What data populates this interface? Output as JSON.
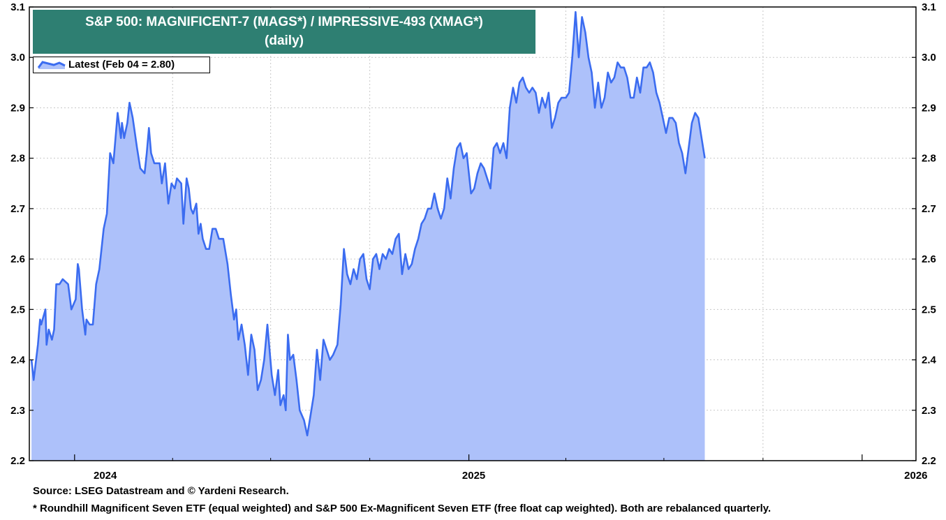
{
  "chart_data": {
    "type": "area",
    "title": "S&P 500: MAGNIFICENT-7 (MAGS*)  /  IMPRESSIVE-493 (XMAG*)",
    "subtitle": "(daily)",
    "legend": {
      "placement": "top-left",
      "entries": [
        "Latest (Feb 04 = 2.80)"
      ]
    },
    "series": [
      {
        "name": "Latest (Feb 04 = 2.80)",
        "line_color": "#3b6cf0",
        "fill_color": "#adc1fa",
        "points": [
          [
            "2023-11-22",
            2.4
          ],
          [
            "2023-11-24",
            2.36
          ],
          [
            "2023-11-28",
            2.43
          ],
          [
            "2023-11-30",
            2.48
          ],
          [
            "2023-12-01",
            2.47
          ],
          [
            "2023-12-05",
            2.5
          ],
          [
            "2023-12-06",
            2.43
          ],
          [
            "2023-12-08",
            2.46
          ],
          [
            "2023-12-11",
            2.44
          ],
          [
            "2023-12-13",
            2.46
          ],
          [
            "2023-12-15",
            2.55
          ],
          [
            "2023-12-18",
            2.55
          ],
          [
            "2023-12-21",
            2.56
          ],
          [
            "2023-12-26",
            2.55
          ],
          [
            "2023-12-29",
            2.5
          ],
          [
            "2024-01-02",
            2.52
          ],
          [
            "2024-01-04",
            2.59
          ],
          [
            "2024-01-05",
            2.58
          ],
          [
            "2024-01-08",
            2.5
          ],
          [
            "2024-01-11",
            2.45
          ],
          [
            "2024-01-12",
            2.48
          ],
          [
            "2024-01-15",
            2.47
          ],
          [
            "2024-01-18",
            2.47
          ],
          [
            "2024-01-21",
            2.55
          ],
          [
            "2024-01-24",
            2.58
          ],
          [
            "2024-01-28",
            2.66
          ],
          [
            "2024-01-31",
            2.69
          ],
          [
            "2024-02-03",
            2.81
          ],
          [
            "2024-02-06",
            2.79
          ],
          [
            "2024-02-10",
            2.89
          ],
          [
            "2024-02-13",
            2.84
          ],
          [
            "2024-02-14",
            2.87
          ],
          [
            "2024-02-16",
            2.84
          ],
          [
            "2024-02-19",
            2.87
          ],
          [
            "2024-02-21",
            2.91
          ],
          [
            "2024-02-24",
            2.88
          ],
          [
            "2024-02-28",
            2.82
          ],
          [
            "2024-03-02",
            2.78
          ],
          [
            "2024-03-06",
            2.77
          ],
          [
            "2024-03-08",
            2.81
          ],
          [
            "2024-03-10",
            2.86
          ],
          [
            "2024-03-12",
            2.81
          ],
          [
            "2024-03-15",
            2.79
          ],
          [
            "2024-03-20",
            2.79
          ],
          [
            "2024-03-22",
            2.75
          ],
          [
            "2024-03-25",
            2.79
          ],
          [
            "2024-03-28",
            2.71
          ],
          [
            "2024-03-31",
            2.75
          ],
          [
            "2024-04-03",
            2.74
          ],
          [
            "2024-04-05",
            2.76
          ],
          [
            "2024-04-09",
            2.75
          ],
          [
            "2024-04-11",
            2.67
          ],
          [
            "2024-04-14",
            2.76
          ],
          [
            "2024-04-16",
            2.74
          ],
          [
            "2024-04-18",
            2.7
          ],
          [
            "2024-04-20",
            2.69
          ],
          [
            "2024-04-23",
            2.71
          ],
          [
            "2024-04-25",
            2.65
          ],
          [
            "2024-04-27",
            2.67
          ],
          [
            "2024-04-29",
            2.64
          ],
          [
            "2024-05-02",
            2.62
          ],
          [
            "2024-05-05",
            2.62
          ],
          [
            "2024-05-08",
            2.66
          ],
          [
            "2024-05-11",
            2.66
          ],
          [
            "2024-05-14",
            2.64
          ],
          [
            "2024-05-18",
            2.64
          ],
          [
            "2024-05-22",
            2.59
          ],
          [
            "2024-05-25",
            2.53
          ],
          [
            "2024-05-28",
            2.48
          ],
          [
            "2024-05-30",
            2.5
          ],
          [
            "2024-06-01",
            2.44
          ],
          [
            "2024-06-04",
            2.47
          ],
          [
            "2024-06-07",
            2.43
          ],
          [
            "2024-06-10",
            2.37
          ],
          [
            "2024-06-13",
            2.45
          ],
          [
            "2024-06-16",
            2.42
          ],
          [
            "2024-06-19",
            2.34
          ],
          [
            "2024-06-22",
            2.36
          ],
          [
            "2024-06-25",
            2.4
          ],
          [
            "2024-06-28",
            2.47
          ],
          [
            "2024-07-02",
            2.37
          ],
          [
            "2024-07-05",
            2.33
          ],
          [
            "2024-07-08",
            2.38
          ],
          [
            "2024-07-10",
            2.31
          ],
          [
            "2024-07-13",
            2.33
          ],
          [
            "2024-07-15",
            2.3
          ],
          [
            "2024-07-17",
            2.45
          ],
          [
            "2024-07-19",
            2.4
          ],
          [
            "2024-07-22",
            2.41
          ],
          [
            "2024-07-25",
            2.36
          ],
          [
            "2024-07-28",
            2.3
          ],
          [
            "2024-08-01",
            2.28
          ],
          [
            "2024-08-04",
            2.25
          ],
          [
            "2024-08-07",
            2.29
          ],
          [
            "2024-08-10",
            2.33
          ],
          [
            "2024-08-13",
            2.42
          ],
          [
            "2024-08-16",
            2.36
          ],
          [
            "2024-08-19",
            2.44
          ],
          [
            "2024-08-22",
            2.42
          ],
          [
            "2024-08-25",
            2.4
          ],
          [
            "2024-08-28",
            2.41
          ],
          [
            "2024-09-01",
            2.43
          ],
          [
            "2024-09-04",
            2.51
          ],
          [
            "2024-09-07",
            2.62
          ],
          [
            "2024-09-10",
            2.57
          ],
          [
            "2024-09-13",
            2.55
          ],
          [
            "2024-09-16",
            2.58
          ],
          [
            "2024-09-19",
            2.56
          ],
          [
            "2024-09-22",
            2.6
          ],
          [
            "2024-09-25",
            2.61
          ],
          [
            "2024-09-28",
            2.56
          ],
          [
            "2024-10-01",
            2.54
          ],
          [
            "2024-10-04",
            2.6
          ],
          [
            "2024-10-07",
            2.61
          ],
          [
            "2024-10-10",
            2.58
          ],
          [
            "2024-10-13",
            2.61
          ],
          [
            "2024-10-16",
            2.6
          ],
          [
            "2024-10-19",
            2.62
          ],
          [
            "2024-10-22",
            2.61
          ],
          [
            "2024-10-25",
            2.64
          ],
          [
            "2024-10-28",
            2.65
          ],
          [
            "2024-10-31",
            2.57
          ],
          [
            "2024-11-03",
            2.61
          ],
          [
            "2024-11-06",
            2.58
          ],
          [
            "2024-11-09",
            2.59
          ],
          [
            "2024-11-12",
            2.62
          ],
          [
            "2024-11-15",
            2.64
          ],
          [
            "2024-11-18",
            2.67
          ],
          [
            "2024-11-21",
            2.68
          ],
          [
            "2024-11-24",
            2.7
          ],
          [
            "2024-11-27",
            2.7
          ],
          [
            "2024-11-30",
            2.73
          ],
          [
            "2024-12-03",
            2.7
          ],
          [
            "2024-12-06",
            2.68
          ],
          [
            "2024-12-09",
            2.7
          ],
          [
            "2024-12-12",
            2.76
          ],
          [
            "2024-12-15",
            2.72
          ],
          [
            "2024-12-18",
            2.78
          ],
          [
            "2024-12-21",
            2.82
          ],
          [
            "2024-12-24",
            2.83
          ],
          [
            "2024-12-27",
            2.8
          ],
          [
            "2024-12-30",
            2.81
          ],
          [
            "2025-01-03",
            2.73
          ],
          [
            "2025-01-06",
            2.74
          ],
          [
            "2025-01-09",
            2.77
          ],
          [
            "2025-01-12",
            2.79
          ],
          [
            "2025-01-15",
            2.78
          ],
          [
            "2025-01-18",
            2.76
          ],
          [
            "2025-01-21",
            2.74
          ],
          [
            "2025-01-24",
            2.82
          ],
          [
            "2025-01-27",
            2.83
          ],
          [
            "2025-01-30",
            2.81
          ],
          [
            "2025-02-02",
            2.83
          ],
          [
            "2025-02-05",
            2.8
          ],
          [
            "2025-02-08",
            2.9
          ],
          [
            "2025-02-11",
            2.94
          ],
          [
            "2025-02-14",
            2.91
          ],
          [
            "2025-02-17",
            2.95
          ],
          [
            "2025-02-20",
            2.96
          ],
          [
            "2025-02-23",
            2.94
          ],
          [
            "2025-02-26",
            2.93
          ],
          [
            "2025-03-01",
            2.94
          ],
          [
            "2025-03-04",
            2.93
          ],
          [
            "2025-03-07",
            2.89
          ],
          [
            "2025-03-10",
            2.92
          ],
          [
            "2025-03-13",
            2.9
          ],
          [
            "2025-03-16",
            2.93
          ],
          [
            "2025-03-19",
            2.86
          ],
          [
            "2025-03-22",
            2.88
          ],
          [
            "2025-03-25",
            2.91
          ],
          [
            "2025-03-28",
            2.92
          ],
          [
            "2025-04-01",
            2.92
          ],
          [
            "2025-04-04",
            2.93
          ],
          [
            "2025-04-07",
            3.0
          ],
          [
            "2025-04-10",
            3.09
          ],
          [
            "2025-04-13",
            3.0
          ],
          [
            "2025-04-16",
            3.08
          ],
          [
            "2025-04-19",
            3.05
          ],
          [
            "2025-04-22",
            3.0
          ],
          [
            "2025-04-25",
            2.97
          ],
          [
            "2025-04-28",
            2.9
          ],
          [
            "2025-05-01",
            2.95
          ],
          [
            "2025-05-04",
            2.9
          ],
          [
            "2025-05-07",
            2.92
          ],
          [
            "2025-05-10",
            2.97
          ],
          [
            "2025-05-13",
            2.95
          ],
          [
            "2025-05-16",
            2.96
          ],
          [
            "2025-05-19",
            2.99
          ],
          [
            "2025-05-22",
            2.98
          ],
          [
            "2025-05-25",
            2.98
          ],
          [
            "2025-05-28",
            2.96
          ],
          [
            "2025-05-31",
            2.92
          ],
          [
            "2025-06-03",
            2.92
          ],
          [
            "2025-06-06",
            2.96
          ],
          [
            "2025-06-09",
            2.93
          ],
          [
            "2025-06-12",
            2.98
          ],
          [
            "2025-06-15",
            2.98
          ],
          [
            "2025-06-18",
            2.99
          ],
          [
            "2025-06-21",
            2.97
          ],
          [
            "2025-06-24",
            2.93
          ],
          [
            "2025-06-27",
            2.91
          ],
          [
            "2025-06-30",
            2.88
          ],
          [
            "2025-07-03",
            2.85
          ],
          [
            "2025-07-06",
            2.88
          ],
          [
            "2025-07-09",
            2.88
          ],
          [
            "2025-07-12",
            2.87
          ],
          [
            "2025-07-15",
            2.83
          ],
          [
            "2025-07-18",
            2.81
          ],
          [
            "2025-07-21",
            2.77
          ],
          [
            "2025-07-24",
            2.82
          ],
          [
            "2025-07-27",
            2.87
          ],
          [
            "2025-07-30",
            2.89
          ],
          [
            "2025-08-02",
            2.88
          ],
          [
            "2025-08-05",
            2.84
          ],
          [
            "2025-08-08",
            2.8
          ]
        ]
      }
    ],
    "x_axis": {
      "ticks": [
        "2024",
        "2025",
        "2026"
      ]
    },
    "y_axis": {
      "min": 2.2,
      "max": 3.1,
      "ticks": [
        2.2,
        2.3,
        2.4,
        2.5,
        2.6,
        2.7,
        2.8,
        2.9,
        3.0,
        3.1
      ],
      "both_sides": true
    },
    "grid": true
  },
  "footnotes": {
    "source": "Source: LSEG Datastream and © Yardeni Research.",
    "note": "* Roundhill Magnificent Seven ETF (equal weighted) and S&P 500 Ex-Magnificent Seven ETF (free float cap weighted). Both are rebalanced quarterly."
  }
}
